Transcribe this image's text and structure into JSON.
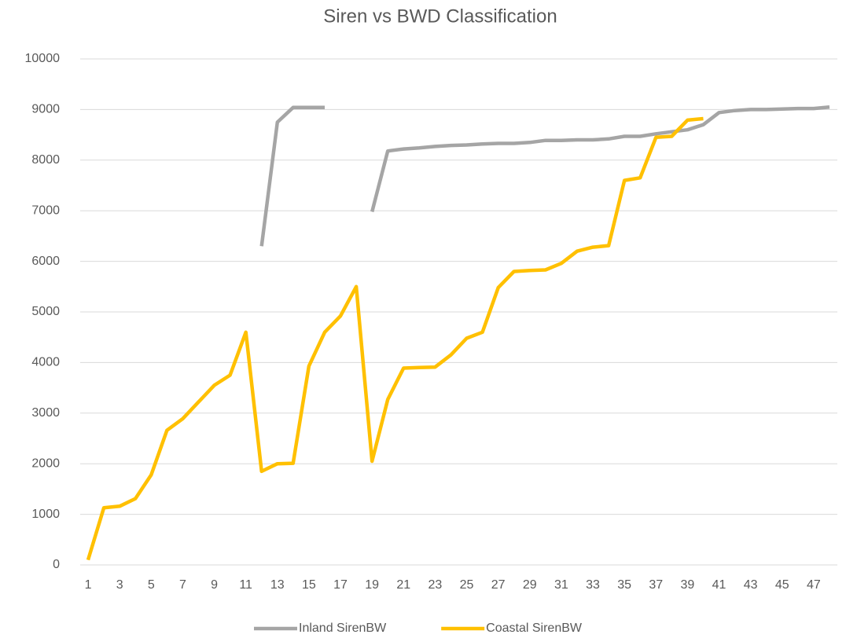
{
  "chart_data": {
    "type": "line",
    "title": "Siren vs BWD Classification",
    "categories": [
      1,
      null,
      3,
      null,
      5,
      null,
      7,
      null,
      9,
      null,
      11,
      null,
      13,
      null,
      15,
      null,
      17,
      null,
      19,
      null,
      21,
      null,
      23,
      null,
      25,
      null,
      27,
      null,
      29,
      null,
      31,
      null,
      33,
      null,
      35,
      null,
      37,
      null,
      39,
      null,
      41,
      null,
      43,
      null,
      45,
      null,
      47,
      null
    ],
    "series": [
      {
        "name": "Inland SirenBW",
        "color": "#a5a5a5",
        "values": [
          null,
          null,
          null,
          null,
          null,
          null,
          null,
          null,
          null,
          null,
          null,
          6300,
          8750,
          9040,
          9040,
          9040,
          null,
          null,
          6980,
          8180,
          8220,
          8240,
          8270,
          8290,
          8300,
          8320,
          8330,
          8330,
          8350,
          8390,
          8390,
          8400,
          8400,
          8420,
          8470,
          8470,
          8520,
          8560,
          8600,
          8700,
          8940,
          8980,
          9000,
          9000,
          9010,
          9020,
          9020,
          9050
        ]
      },
      {
        "name": "Coastal SirenBW",
        "color": "#ffc000",
        "values": [
          100,
          1130,
          1160,
          1310,
          1780,
          2660,
          2890,
          3220,
          3550,
          3750,
          4600,
          1850,
          2000,
          2010,
          3930,
          4600,
          4920,
          5500,
          2050,
          3270,
          3890,
          3900,
          3910,
          4150,
          4480,
          4600,
          5480,
          5800,
          5820,
          5830,
          5960,
          6200,
          6280,
          6310,
          7600,
          7650,
          8450,
          8470,
          8790,
          8820,
          null,
          null,
          null,
          null,
          null,
          null,
          null,
          null
        ]
      }
    ],
    "ylim": [
      0,
      10000
    ],
    "yticks": [
      0,
      1000,
      2000,
      3000,
      4000,
      5000,
      6000,
      7000,
      8000,
      9000,
      10000
    ],
    "grid": true,
    "legend": "bottom"
  }
}
